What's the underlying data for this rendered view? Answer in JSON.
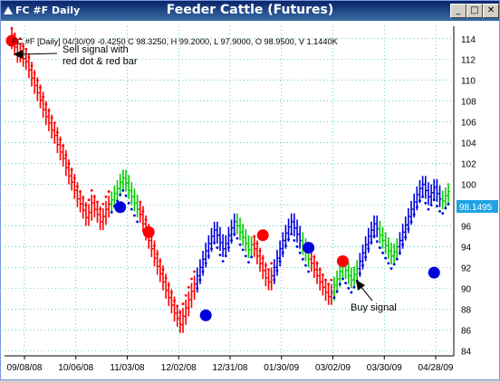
{
  "window": {
    "app_title": "FC #F Daily",
    "chart_title": "Feeder Cattle (Futures)",
    "buttons": {
      "minimize": "_",
      "maximize": "□",
      "close": "✕"
    }
  },
  "header": {
    "info": "FC #F [Daily] 04/30/09 -0.4250 C 98.3250, H 99.2000, L 97.9000, O 98.9500, V 1.1440K"
  },
  "annotations": {
    "sell": [
      "Sell signal with",
      "red dot & red bar"
    ],
    "buy": "Buy signal"
  },
  "colors": {
    "background": "#ffffff",
    "grid": "#00aaaa",
    "up_bar": "#00cc00",
    "down_bar": "#ff0000",
    "neutral_bar": "#0000dd",
    "sell_dot": "#ff0000",
    "buy_dot": "#0000dd",
    "price_tag": "#1fa3e6"
  },
  "chart_data": {
    "type": "ohlc",
    "title": "Feeder Cattle (Futures)",
    "x_ticks": [
      "09/08/08",
      "10/06/08",
      "11/03/08",
      "12/02/08",
      "12/31/08",
      "01/30/09",
      "03/02/09",
      "03/30/09",
      "04/28/09"
    ],
    "y_ticks": [
      84,
      86,
      88,
      90,
      92,
      94,
      96,
      98,
      100,
      102,
      104,
      106,
      108,
      110,
      112,
      114
    ],
    "ylim": [
      83.5,
      115.2
    ],
    "last_price": "98.1495",
    "grid": true,
    "series_segments": [
      {
        "color": "down",
        "closes": [
          113.8,
          113.2,
          112.5,
          112.8,
          112.1,
          111.8,
          111.0,
          110.2,
          109.5,
          108.8,
          108.1,
          107.2,
          106.5,
          105.9,
          105.2,
          104.7,
          103.8,
          103.1,
          102.5,
          101.6,
          100.8,
          100.2,
          99.4,
          98.6,
          98.1,
          97.5,
          96.8,
          97.3,
          98.2,
          97.6,
          97.1,
          96.4,
          96.9,
          97.6,
          98.1
        ]
      },
      {
        "color": "up",
        "closes": [
          98.5,
          99.1,
          99.6,
          100.2,
          100.6,
          100.1,
          99.4,
          98.8,
          98.2,
          97.6
        ]
      },
      {
        "color": "down",
        "closes": [
          97.1,
          96.2,
          95.4,
          94.6,
          93.8,
          92.9,
          92.1,
          91.4,
          90.6,
          89.8,
          89.1,
          88.4,
          87.6,
          87.1,
          86.5,
          87.3,
          88.1,
          88.9,
          89.7,
          90.4
        ]
      },
      {
        "color": "neutral",
        "closes": [
          91.2,
          92.0,
          92.8,
          93.6,
          94.3,
          95.0,
          95.6,
          95.1,
          94.4,
          93.8,
          94.3,
          95.1,
          95.8,
          96.4
        ]
      },
      {
        "color": "up",
        "closes": [
          96.0,
          95.4,
          94.9,
          94.3,
          93.7,
          94.2
        ]
      },
      {
        "color": "down",
        "closes": [
          93.8,
          93.1,
          92.4,
          91.7,
          91.0,
          90.6,
          91.2
        ]
      },
      {
        "color": "neutral",
        "closes": [
          92.0,
          92.9,
          93.8,
          94.6,
          95.3,
          95.9,
          96.4,
          95.8,
          95.2,
          94.6
        ]
      },
      {
        "color": "up",
        "closes": [
          94.0,
          93.4,
          92.8
        ]
      },
      {
        "color": "down",
        "closes": [
          92.4,
          91.8,
          91.2,
          90.6,
          90.1,
          89.6,
          89.2,
          89.6
        ]
      },
      {
        "color": "up",
        "closes": [
          90.3,
          90.9,
          91.6,
          92.1,
          91.7,
          91.2,
          90.8,
          91.3,
          91.9
        ]
      },
      {
        "color": "neutral",
        "closes": [
          92.6,
          93.4,
          94.2,
          95.0,
          95.6,
          96.2,
          95.7
        ]
      },
      {
        "color": "up",
        "closes": [
          95.1,
          94.6,
          94.1,
          93.6,
          93.1,
          93.5,
          94.0
        ]
      },
      {
        "color": "neutral",
        "closes": [
          94.6,
          95.4,
          96.1,
          96.9,
          97.6,
          98.3,
          99.0,
          99.6,
          100.0,
          99.4,
          98.8,
          99.2,
          99.7,
          99.1,
          98.6
        ]
      },
      {
        "color": "up",
        "closes": [
          98.4,
          98.9,
          99.3
        ]
      }
    ],
    "signals": [
      {
        "type": "sell",
        "index": 0,
        "value": 113.8
      },
      {
        "type": "buy",
        "index": 38,
        "value": 97.8
      },
      {
        "type": "sell",
        "index": 48,
        "value": 95.4
      },
      {
        "type": "buy",
        "index": 68,
        "value": 87.4
      },
      {
        "type": "sell",
        "index": 88,
        "value": 95.1
      },
      {
        "type": "buy",
        "index": 104,
        "value": 93.9
      },
      {
        "type": "sell",
        "index": 116,
        "value": 92.6
      },
      {
        "type": "buy",
        "index": 148,
        "value": 91.5
      }
    ]
  }
}
